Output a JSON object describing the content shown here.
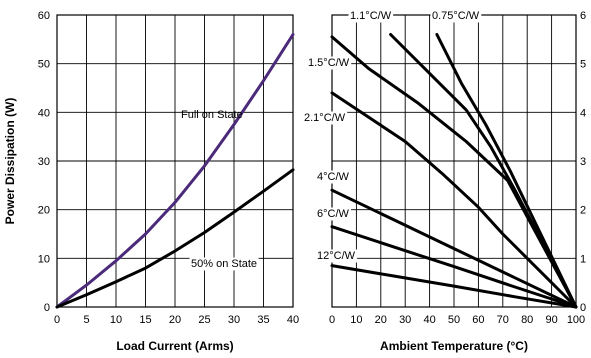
{
  "chart_data": [
    {
      "type": "line",
      "xlabel": "Load Current (Arms)",
      "ylabel": "Power Dissipation (W)",
      "xlim": [
        0,
        40
      ],
      "ylim": [
        0,
        60
      ],
      "xticks": [
        "0",
        "5",
        "10",
        "15",
        "20",
        "25",
        "30",
        "35",
        "40"
      ],
      "yticks": [
        "0",
        "10",
        "20",
        "30",
        "40",
        "50",
        "60"
      ],
      "grid": true,
      "series": [
        {
          "name": "Full on State",
          "color": "#4b2a7a",
          "x": [
            0,
            5,
            10,
            15,
            20,
            25,
            30,
            35,
            40
          ],
          "y": [
            0,
            4.5,
            9.5,
            15,
            21.5,
            29,
            37.5,
            46.5,
            56
          ]
        },
        {
          "name": "50% on State",
          "color": "#000000",
          "x": [
            0,
            5,
            10,
            15,
            20,
            25,
            30,
            35,
            40
          ],
          "y": [
            0,
            2.5,
            5.2,
            8,
            11.5,
            15.3,
            19.5,
            23.8,
            28.2
          ]
        }
      ]
    },
    {
      "type": "line",
      "xlabel": "Ambient Temperature (°C)",
      "ylabel": "",
      "xlim": [
        0,
        100
      ],
      "ylim": [
        0,
        60
      ],
      "xticks": [
        "0",
        "10",
        "20",
        "30",
        "40",
        "50",
        "60",
        "70",
        "80",
        "90",
        "100"
      ],
      "yticks": [
        "0",
        "1",
        "2",
        "3",
        "4",
        "5",
        "6"
      ],
      "grid": true,
      "series": [
        {
          "name": "1.1°C/W",
          "color": "#000000",
          "x": [
            24,
            40,
            55,
            65,
            75,
            100
          ],
          "y": [
            56,
            48,
            40.5,
            33,
            24,
            0
          ]
        },
        {
          "name": "0.75°C/W",
          "color": "#000000",
          "x": [
            43,
            53,
            63,
            73,
            100
          ],
          "y": [
            56,
            46,
            37.5,
            28,
            0
          ]
        },
        {
          "name": "1.5°C/W",
          "color": "#000000",
          "x": [
            0,
            15,
            35,
            55,
            72,
            100
          ],
          "y": [
            55.5,
            49,
            42,
            34,
            26,
            0
          ]
        },
        {
          "name": "2.1°C/W",
          "color": "#000000",
          "x": [
            0,
            30,
            45,
            60,
            70,
            100
          ],
          "y": [
            44,
            34,
            27.5,
            20.5,
            15,
            0
          ]
        },
        {
          "name": "4°C/W",
          "color": "#000000",
          "x": [
            0,
            25,
            50,
            75,
            100
          ],
          "y": [
            24,
            18,
            12,
            6,
            0
          ]
        },
        {
          "name": "6°C/W",
          "color": "#000000",
          "x": [
            0,
            25,
            50,
            75,
            100
          ],
          "y": [
            16.5,
            12.4,
            8.3,
            4.1,
            0
          ]
        },
        {
          "name": "12°C/W",
          "color": "#000000",
          "x": [
            0,
            25,
            50,
            75,
            100
          ],
          "y": [
            8.5,
            6.4,
            4.3,
            2.1,
            0
          ]
        }
      ],
      "annotations": [
        "1.1°C/W",
        "0.75°C/W",
        "1.5°C/W",
        "2.1°C/W",
        "4°C/W",
        "6°C/W",
        "12°C/W"
      ]
    }
  ]
}
